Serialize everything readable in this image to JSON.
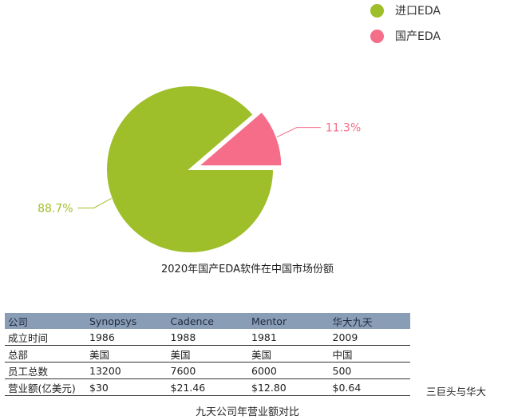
{
  "chart_data": {
    "type": "pie",
    "title": "2020年国产EDA软件在中国市场份额",
    "slices": [
      {
        "label": "进口EDA",
        "value": 88.7,
        "value_label": "88.7%",
        "color": "#9ebe2a"
      },
      {
        "label": "国产EDA",
        "value": 11.3,
        "value_label": "11.3%",
        "color": "#f56d89"
      }
    ],
    "legend_position": "top-right",
    "exploded_slice": "国产EDA"
  },
  "table": {
    "headers": [
      "公司",
      "Synopsys",
      "Cadence",
      "Mentor",
      "华大九天"
    ],
    "rows": [
      [
        "成立时间",
        "1986",
        "1988",
        "1981",
        "2009"
      ],
      [
        "总部",
        "美国",
        "美国",
        "美国",
        "中国"
      ],
      [
        "员工总数",
        "13200",
        "7600",
        "6000",
        "500"
      ],
      [
        "营业额(亿美元)",
        "$30",
        "$21.46",
        "$12.80",
        "$0.64"
      ]
    ],
    "side_note": "三巨头与华大",
    "caption": "九天公司年营业额对比"
  }
}
